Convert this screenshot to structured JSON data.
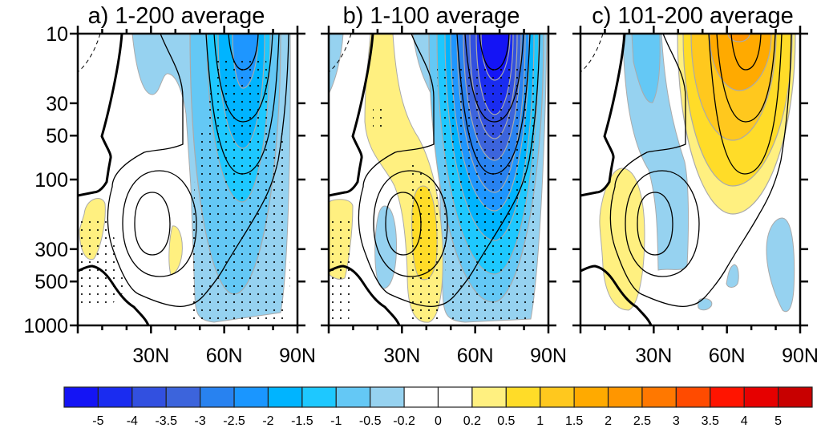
{
  "chart_data": {
    "type": "contour",
    "panels": [
      {
        "title": "a) 1-200 average"
      },
      {
        "title": "b) 1-100 average"
      },
      {
        "title": "c) 101-200 average"
      }
    ],
    "x_axis": {
      "range": [
        0,
        90
      ],
      "tick_labels": [
        "30N",
        "60N",
        "90N"
      ],
      "tick_values": [
        30,
        60,
        90
      ]
    },
    "y_axis": {
      "scale": "log",
      "reversed": true,
      "range": [
        1000,
        10
      ],
      "tick_labels": [
        "10",
        "30",
        "50",
        "100",
        "300",
        "500",
        "1000"
      ],
      "tick_values": [
        10,
        30,
        50,
        100,
        300,
        500,
        1000
      ]
    },
    "colorbar": {
      "placement": "bottom",
      "labels": [
        "-5",
        "-4",
        "-3.5",
        "-3",
        "-2.5",
        "-2",
        "-1.5",
        "-1",
        "-0.5",
        "-0.2",
        "0",
        "0.2",
        "0.5",
        "1",
        "1.5",
        "2",
        "2.5",
        "3",
        "3.5",
        "4",
        "5"
      ],
      "colors": [
        "#1414f5",
        "#1a2cf0",
        "#3250e0",
        "#3c64dc",
        "#2882f0",
        "#1a96ff",
        "#00b4ff",
        "#1ec8ff",
        "#64c8f5",
        "#96d2f0",
        "#ffffff",
        "#ffffff",
        "#fff080",
        "#ffdc28",
        "#ffc81e",
        "#ffaa00",
        "#ff9600",
        "#ff7800",
        "#ff4b00",
        "#ff1400",
        "#e60000",
        "#c80000"
      ]
    },
    "overlays": {
      "contours": "black lines (solid, thick zero line, dashed negative)",
      "stippling": "dots"
    }
  }
}
